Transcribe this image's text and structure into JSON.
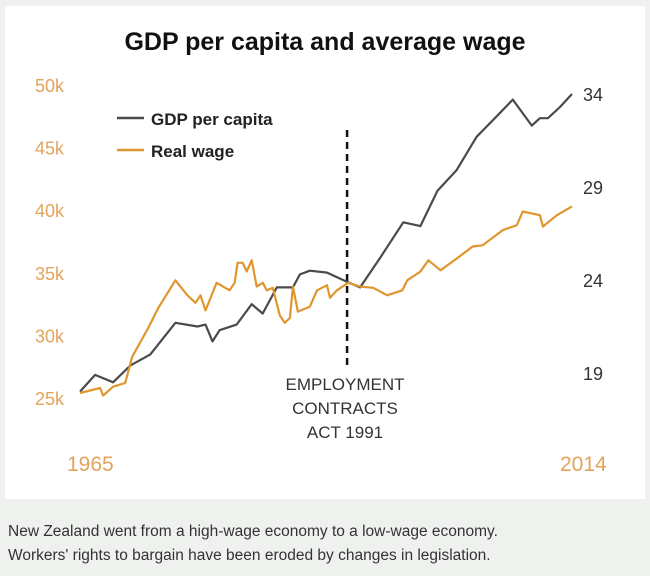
{
  "chart_data": {
    "type": "line",
    "title": "GDP per capita and average wage",
    "xlabel": "",
    "x_ticks": [
      "1965",
      "2014"
    ],
    "xlim": [
      1965,
      2014
    ],
    "left_axis": {
      "ticks": [
        "25k",
        "30k",
        "35k",
        "40k",
        "45k",
        "50k"
      ],
      "ylim": [
        25,
        50
      ],
      "series": "Real wage"
    },
    "right_axis": {
      "ticks": [
        "19",
        "24",
        "29",
        "34"
      ],
      "ylim": [
        19,
        34
      ],
      "series": "GDP per capita"
    },
    "legend": {
      "placement": "top-left",
      "entries": [
        "GDP per capita",
        "Real wage"
      ]
    },
    "annotation": {
      "year": 1991.6,
      "lines": [
        "EMPLOYMENT",
        "CONTRACTS",
        "ACT 1991"
      ]
    },
    "series": [
      {
        "name": "GDP per capita",
        "axis": "right",
        "color": "#4a4a4a",
        "x": [
          1965,
          1966.5,
          1968.3,
          1970,
          1972,
          1974.5,
          1976.7,
          1977.5,
          1978.2,
          1978.9,
          1980.6,
          1982.1,
          1983.2,
          1984.6,
          1986.2,
          1986.9,
          1987.9,
          1989.6,
          1991.6,
          1992.9,
          1994.9,
          1997.2,
          1998.9,
          2000.6,
          2002.5,
          2004.5,
          2006.5,
          2008.1,
          2010,
          2010.8,
          2011.6,
          2012.8,
          2014
        ],
        "values": [
          18.0,
          18.9,
          18.5,
          19.4,
          20.0,
          21.7,
          21.5,
          21.6,
          20.7,
          21.3,
          21.6,
          22.7,
          22.2,
          23.6,
          23.6,
          24.3,
          24.5,
          24.4,
          23.9,
          23.6,
          25.2,
          27.1,
          26.9,
          28.8,
          29.9,
          31.7,
          32.8,
          33.7,
          32.3,
          32.7,
          32.7,
          33.3,
          34.0
        ]
      },
      {
        "name": "Real wage",
        "axis": "left",
        "color": "#e0962e",
        "x": [
          1965,
          1967,
          1967.3,
          1968.3,
          1969.5,
          1970.2,
          1971.8,
          1972.8,
          1974.5,
          1975.7,
          1976.5,
          1977,
          1977.5,
          1978.6,
          1979.9,
          1980.4,
          1980.7,
          1981.2,
          1981.6,
          1982.1,
          1982.6,
          1983.2,
          1983.6,
          1984.2,
          1984.9,
          1985.4,
          1985.9,
          1986.2,
          1986.7,
          1987.9,
          1988.6,
          1989.6,
          1989.9,
          1990.6,
          1991.7,
          1992.9,
          1994.2,
          1995.6,
          1997.1,
          1997.6,
          1998.9,
          1999.7,
          2000.9,
          2002.8,
          2004.1,
          2005.1,
          2007.1,
          2008.5,
          2009.1,
          2010.8,
          2011.1,
          2012.5,
          2014
        ],
        "values": [
          25.4,
          25.8,
          25.2,
          25.9,
          26.2,
          28.3,
          30.6,
          32.2,
          34.4,
          33.2,
          32.6,
          33.2,
          32.0,
          34.2,
          33.6,
          34.2,
          35.8,
          35.8,
          35.1,
          36.0,
          33.9,
          34.2,
          33.6,
          33.8,
          31.6,
          31.0,
          31.4,
          33.9,
          31.9,
          32.3,
          33.6,
          34.0,
          33.0,
          33.6,
          34.2,
          33.9,
          33.8,
          33.2,
          33.6,
          34.4,
          35.1,
          36.0,
          35.2,
          36.3,
          37.1,
          37.2,
          38.4,
          38.8,
          39.9,
          39.6,
          38.7,
          39.6,
          40.3
        ]
      }
    ]
  },
  "caption": [
    "New Zealand went from a high-wage economy to a low-wage economy.",
    "Workers' rights to bargain have been eroded by changes in legislation."
  ],
  "colors": {
    "accent": "#e0962e",
    "label_orange": "#e3a35b",
    "gdp": "#4a4a4a",
    "background": "#eef1ee"
  }
}
